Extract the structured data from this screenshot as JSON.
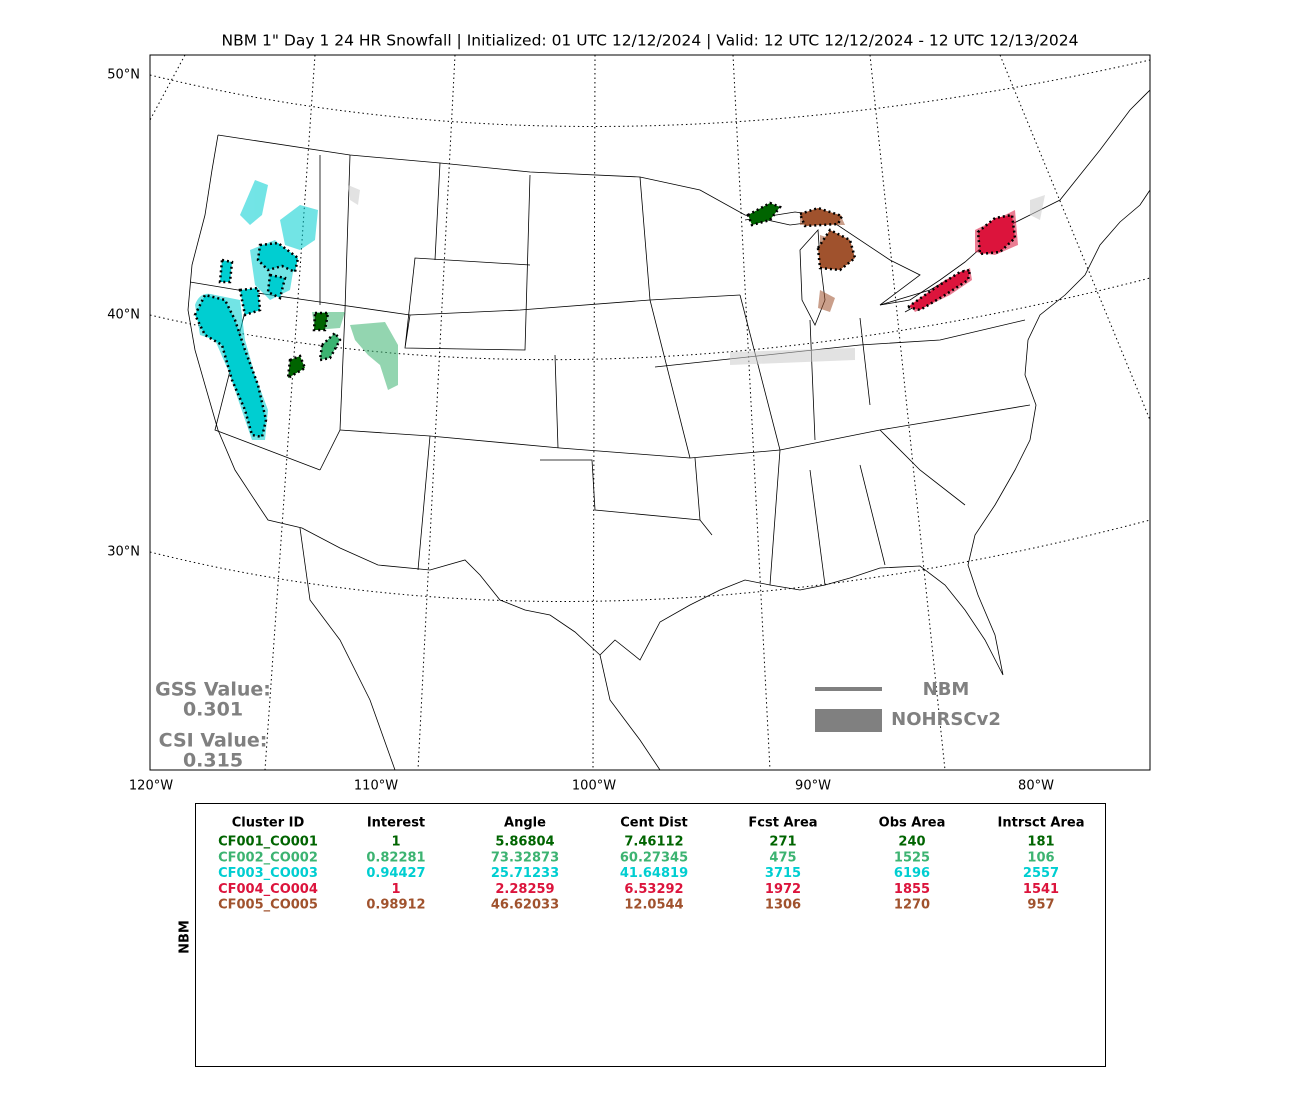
{
  "title": "NBM 1\" Day 1 24 HR Snowfall | Initialized: 01 UTC 12/12/2024 | Valid: 12 UTC 12/12/2024 - 12 UTC 12/13/2024",
  "map": {
    "lat_labels": [
      "50°N",
      "40°N",
      "30°N"
    ],
    "lon_labels": [
      "120°W",
      "110°W",
      "100°W",
      "90°W",
      "80°W"
    ],
    "scores": {
      "gss_label": "GSS Value:",
      "gss_value": "0.301",
      "csi_label": "CSI Value:",
      "csi_value": "0.315"
    },
    "legend": [
      "NBM",
      "NOHRSCv2"
    ]
  },
  "table": {
    "side_label": "NBM",
    "columns": [
      "Cluster ID",
      "Interest",
      "Angle",
      "Cent Dist",
      "Fcst Area",
      "Obs Area",
      "Intrsct Area"
    ],
    "rows": [
      {
        "color": "#006400",
        "cells": [
          "CF001_CO001",
          "1",
          "5.86804",
          "7.46112",
          "271",
          "240",
          "181"
        ]
      },
      {
        "color": "#3cb371",
        "cells": [
          "CF002_CO002",
          "0.82281",
          "73.32873",
          "60.27345",
          "475",
          "1525",
          "106"
        ]
      },
      {
        "color": "#00ced1",
        "cells": [
          "CF003_CO003",
          "0.94427",
          "25.71233",
          "41.64819",
          "3715",
          "6196",
          "2557"
        ]
      },
      {
        "color": "#dc143c",
        "cells": [
          "CF004_CO004",
          "1",
          "2.28259",
          "6.53292",
          "1972",
          "1855",
          "1541"
        ]
      },
      {
        "color": "#a0522d",
        "cells": [
          "CF005_CO005",
          "0.98912",
          "46.62033",
          "12.0544",
          "1306",
          "1270",
          "957"
        ]
      }
    ]
  }
}
